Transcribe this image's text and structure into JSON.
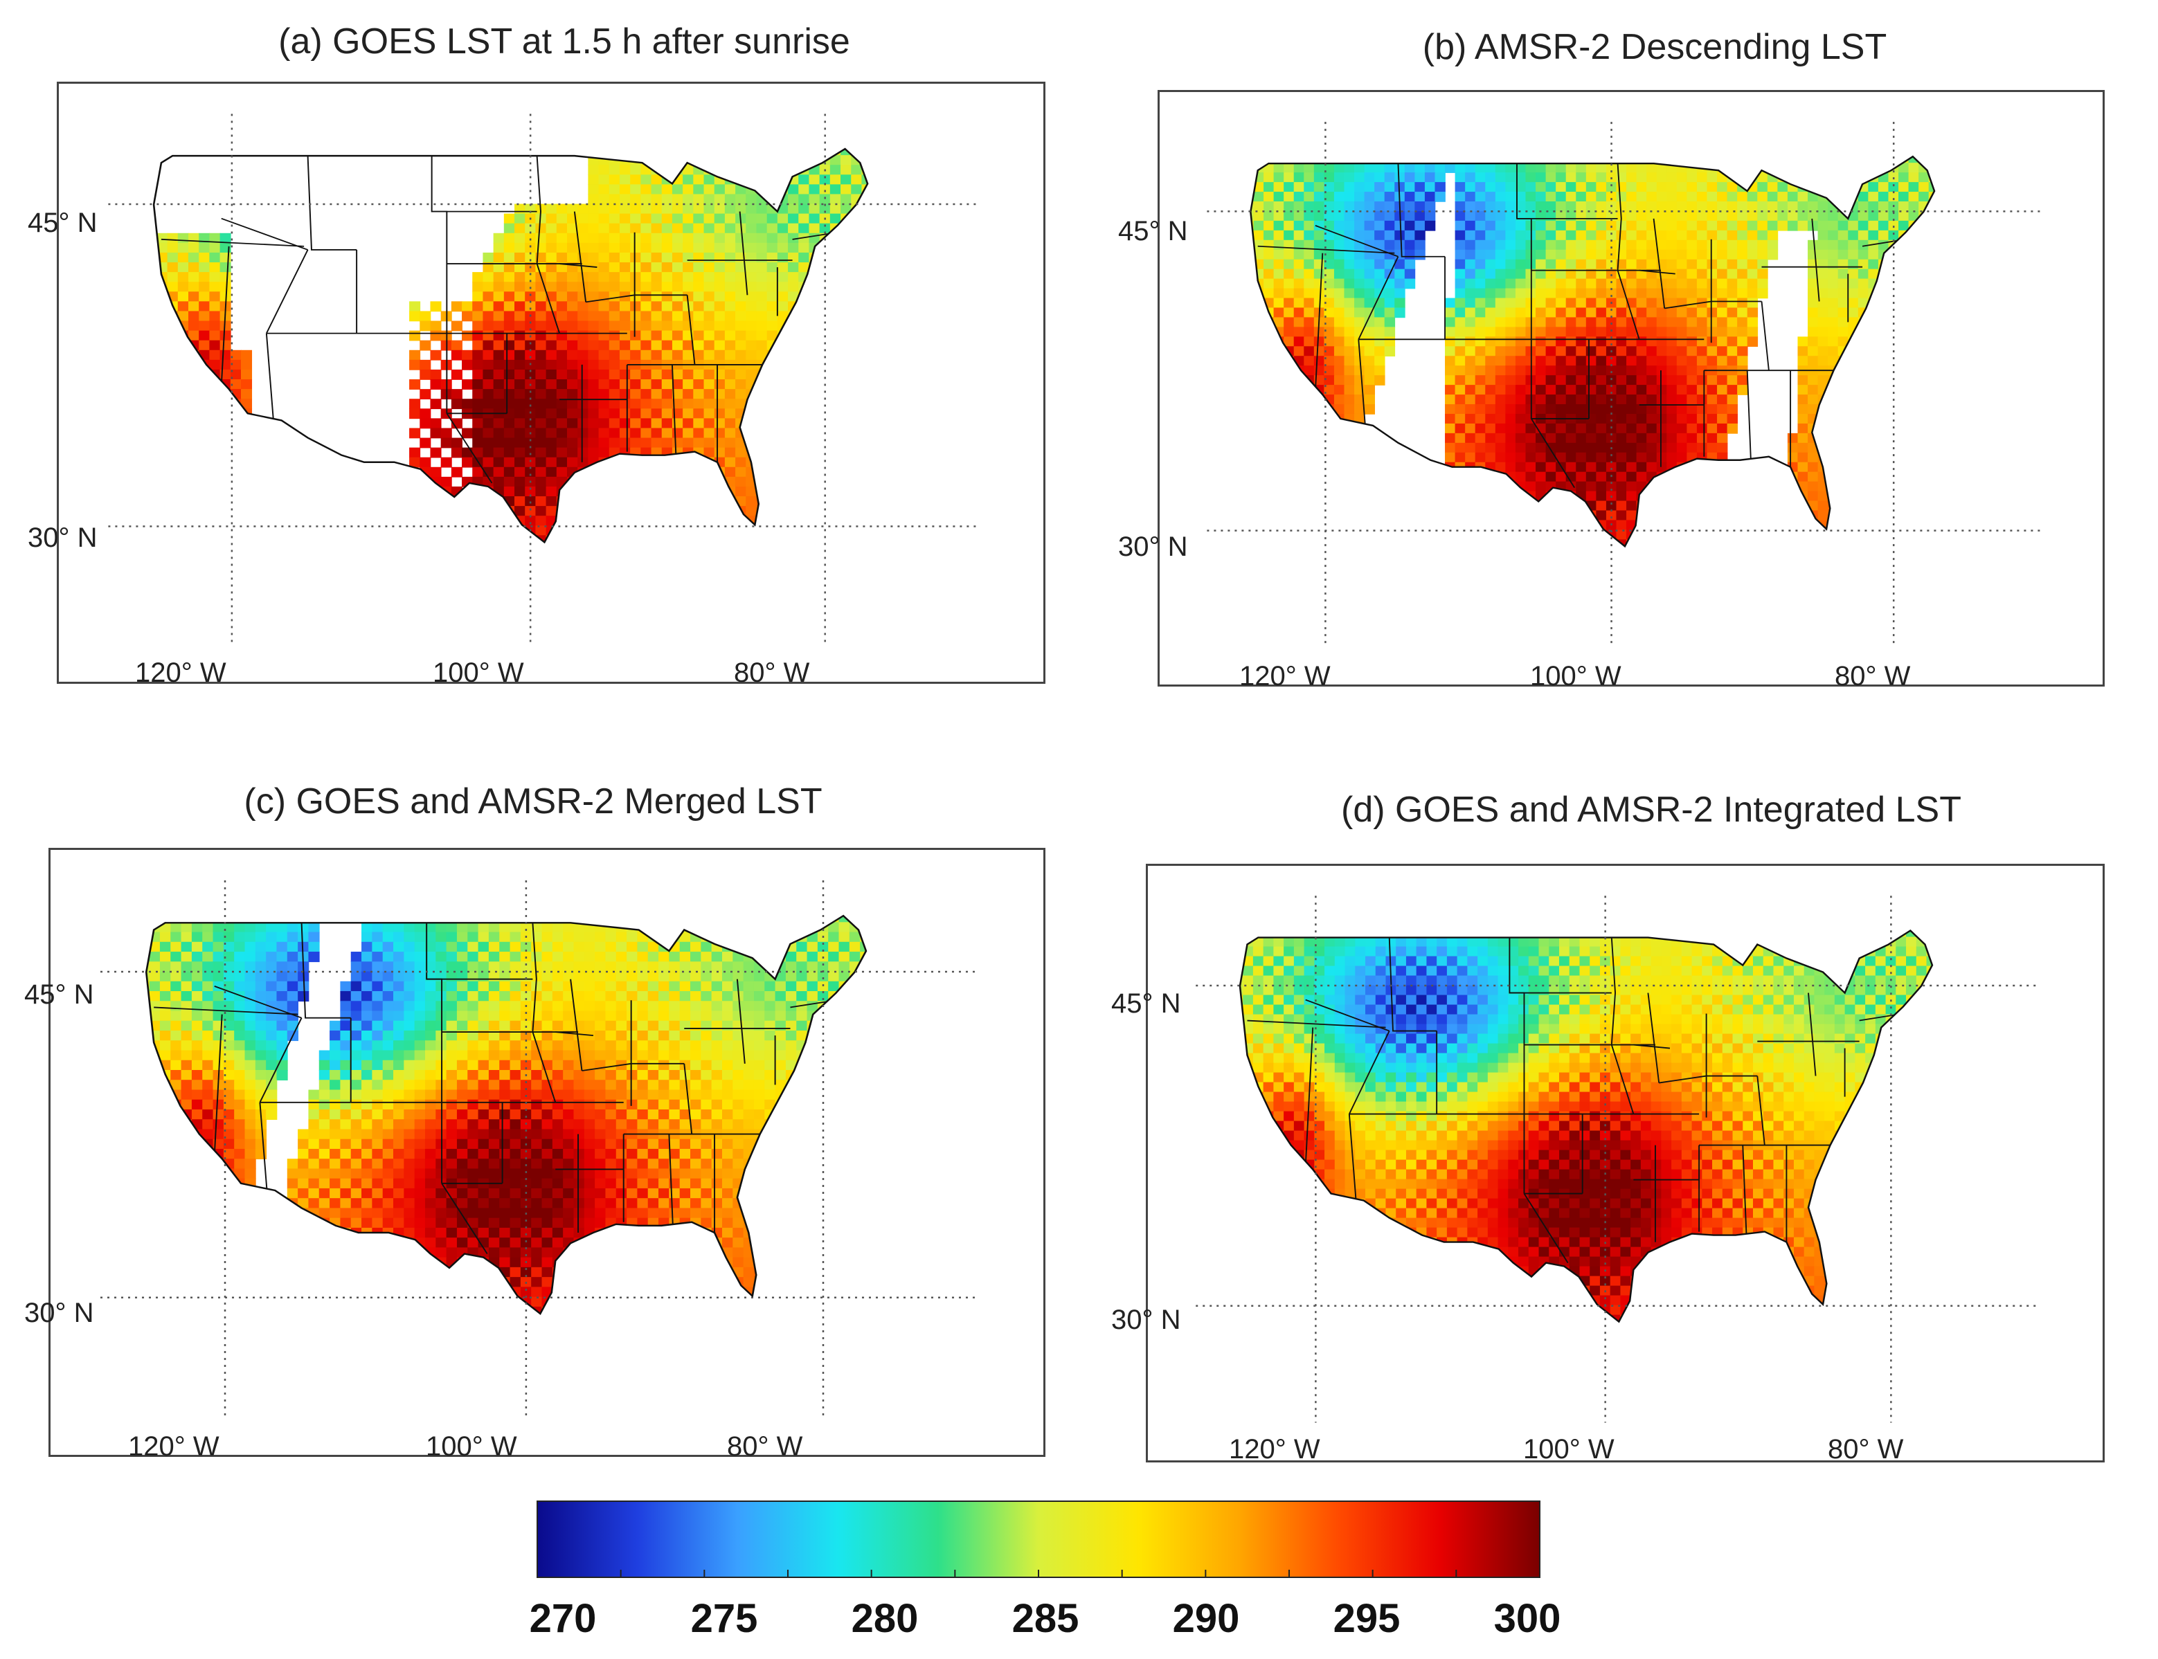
{
  "panels": [
    {
      "id": "a",
      "title": "(a) GOES LST at 1.5 h after sunrise",
      "variant": "goes"
    },
    {
      "id": "b",
      "title": "(b) AMSR-2 Descending LST",
      "variant": "amsr"
    },
    {
      "id": "c",
      "title": "(c) GOES and AMSR-2 Merged LST",
      "variant": "merged"
    },
    {
      "id": "d",
      "title": "(d) GOES and AMSR-2 Integrated LST",
      "variant": "integrated"
    }
  ],
  "graticule": {
    "lat_labels": [
      "45° N",
      "30° N"
    ],
    "lon_labels": [
      "120° W",
      "100° W",
      "80° W"
    ]
  },
  "colorbar": {
    "ticks": [
      "270",
      "275",
      "280",
      "285",
      "290",
      "295",
      "300"
    ],
    "min": 270,
    "max": 300,
    "stops": [
      "#0a0a8c",
      "#1f3fe0",
      "#3aa0ff",
      "#19e6f0",
      "#2ee08a",
      "#d9f03c",
      "#ffe500",
      "#ffa600",
      "#ff4a00",
      "#e80000",
      "#7a0000"
    ]
  }
}
